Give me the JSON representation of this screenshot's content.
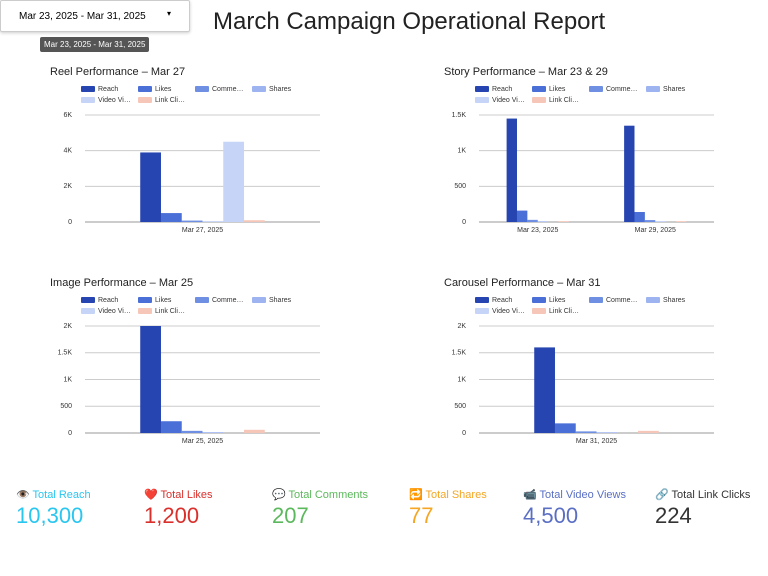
{
  "header": {
    "date_range": "Mar 23, 2025 - Mar 31, 2025",
    "tooltip": "Mar 23, 2025 - Mar 31, 2025",
    "title": "March Campaign Operational Report"
  },
  "chart_data": [
    {
      "type": "bar",
      "title": "Reel Performance – Mar 27",
      "categories": [
        "Mar 27, 2025"
      ],
      "series": [
        {
          "name": "Reach",
          "color": "#2745b0",
          "values": [
            3900
          ]
        },
        {
          "name": "Likes",
          "color": "#4a6fd6",
          "values": [
            500
          ]
        },
        {
          "name": "Comme…",
          "color": "#6f8fe3",
          "values": [
            80
          ]
        },
        {
          "name": "Shares",
          "color": "#9db4f0",
          "values": [
            30
          ]
        },
        {
          "name": "Video Vi…",
          "color": "#c6d4f8",
          "values": [
            4500
          ]
        },
        {
          "name": "Link Cli…",
          "color": "#f6c7b8",
          "values": [
            100
          ]
        }
      ],
      "ylim": [
        0,
        6000
      ],
      "yticks": [
        0,
        {
          "value": 2000,
          "label": "2K"
        },
        {
          "value": 4000,
          "label": "4K"
        },
        {
          "value": 6000,
          "label": "6K"
        }
      ],
      "grid": true
    },
    {
      "type": "bar",
      "title": "Story Performance – Mar 23 & 29",
      "categories": [
        "Mar 23, 2025",
        "Mar 29, 2025"
      ],
      "series": [
        {
          "name": "Reach",
          "color": "#2745b0",
          "values": [
            1450,
            1350
          ]
        },
        {
          "name": "Likes",
          "color": "#4a6fd6",
          "values": [
            160,
            140
          ]
        },
        {
          "name": "Comme…",
          "color": "#6f8fe3",
          "values": [
            30,
            27
          ]
        },
        {
          "name": "Shares",
          "color": "#9db4f0",
          "values": [
            10,
            8
          ]
        },
        {
          "name": "Video Vi…",
          "color": "#c6d4f8",
          "values": [
            0,
            0
          ]
        },
        {
          "name": "Link Cli…",
          "color": "#f6c7b8",
          "values": [
            12,
            12
          ]
        }
      ],
      "ylim": [
        0,
        1500
      ],
      "yticks": [
        0,
        500,
        {
          "value": 1000,
          "label": "1K"
        },
        {
          "value": 1500,
          "label": "1.5K"
        }
      ],
      "grid": true
    },
    {
      "type": "bar",
      "title": "Image Performance – Mar 25",
      "categories": [
        "Mar 25, 2025"
      ],
      "series": [
        {
          "name": "Reach",
          "color": "#2745b0",
          "values": [
            2000
          ]
        },
        {
          "name": "Likes",
          "color": "#4a6fd6",
          "values": [
            220
          ]
        },
        {
          "name": "Comme…",
          "color": "#6f8fe3",
          "values": [
            40
          ]
        },
        {
          "name": "Shares",
          "color": "#9db4f0",
          "values": [
            15
          ]
        },
        {
          "name": "Video Vi…",
          "color": "#c6d4f8",
          "values": [
            0
          ]
        },
        {
          "name": "Link Cli…",
          "color": "#f6c7b8",
          "values": [
            60
          ]
        }
      ],
      "ylim": [
        0,
        2000
      ],
      "yticks": [
        0,
        500,
        {
          "value": 1000,
          "label": "1K"
        },
        {
          "value": 1500,
          "label": "1.5K"
        },
        {
          "value": 2000,
          "label": "2K"
        }
      ],
      "grid": true
    },
    {
      "type": "bar",
      "title": "Carousel Performance – Mar 31",
      "categories": [
        "Mar 31, 2025"
      ],
      "series": [
        {
          "name": "Reach",
          "color": "#2745b0",
          "values": [
            1600
          ]
        },
        {
          "name": "Likes",
          "color": "#4a6fd6",
          "values": [
            180
          ]
        },
        {
          "name": "Comme…",
          "color": "#6f8fe3",
          "values": [
            30
          ]
        },
        {
          "name": "Shares",
          "color": "#9db4f0",
          "values": [
            14
          ]
        },
        {
          "name": "Video Vi…",
          "color": "#c6d4f8",
          "values": [
            0
          ]
        },
        {
          "name": "Link Cli…",
          "color": "#f6c7b8",
          "values": [
            40
          ]
        }
      ],
      "ylim": [
        0,
        2000
      ],
      "yticks": [
        0,
        500,
        {
          "value": 1000,
          "label": "1K"
        },
        {
          "value": 1500,
          "label": "1.5K"
        },
        {
          "value": 2000,
          "label": "2K"
        }
      ],
      "grid": true
    }
  ],
  "kpis": [
    {
      "label": "👁️ Total Reach",
      "value": "10,300",
      "color": "#29c6f0"
    },
    {
      "label": "❤️ Total Likes",
      "value": "1,200",
      "color": "#d9302c"
    },
    {
      "label": "💬 Total Comments",
      "value": "207",
      "color": "#5cb85c"
    },
    {
      "label": "🔁 Total Shares",
      "value": "77",
      "color": "#f5a623"
    },
    {
      "label": "📹 Total Video Views",
      "value": "4,500",
      "color": "#5a6fc4"
    },
    {
      "label": "🔗 Total Link Clicks",
      "value": "224",
      "color": "#333333"
    }
  ]
}
